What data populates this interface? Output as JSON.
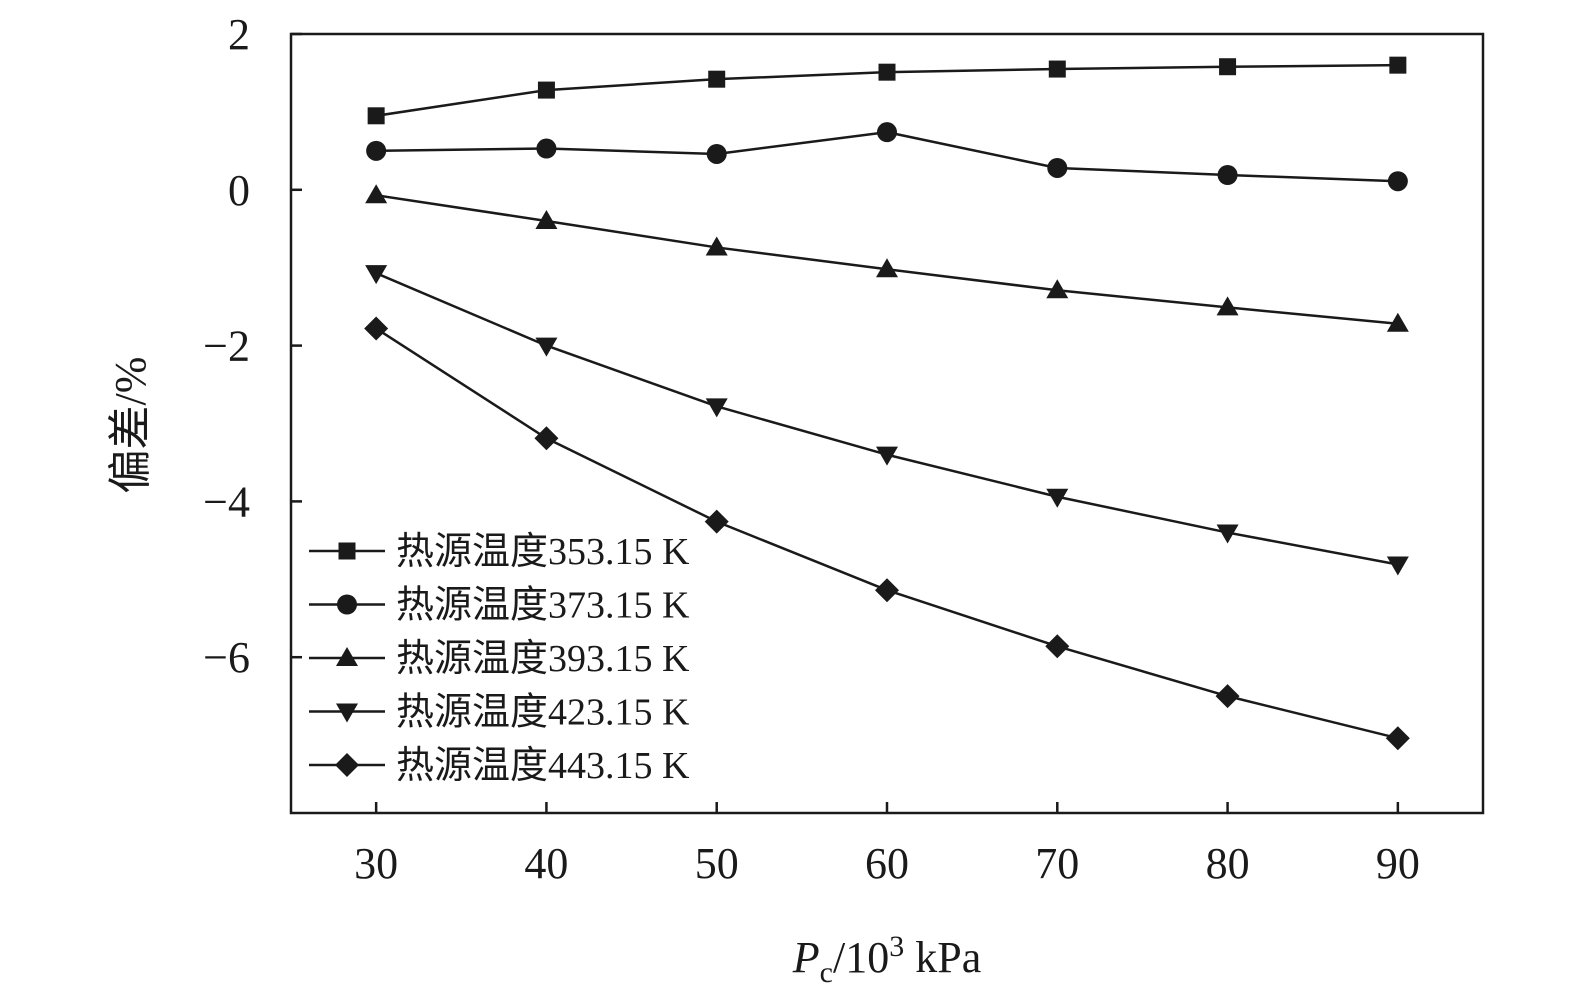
{
  "chart_data": {
    "type": "line",
    "x": [
      30,
      40,
      50,
      60,
      70,
      80,
      90
    ],
    "xlim": [
      25,
      95
    ],
    "ylim": [
      -8,
      2
    ],
    "x_ticks": [
      30,
      40,
      50,
      60,
      70,
      80,
      90
    ],
    "y_ticks": [
      2,
      0,
      -2,
      -4,
      -6
    ],
    "y_tick_labels": [
      "2",
      "0",
      "−2",
      "−4",
      "−6"
    ],
    "xlabel": {
      "main": "P",
      "sub": "c",
      "rest": "/10",
      "sup": "3",
      "tail": " kPa"
    },
    "ylabel": "偏差/%",
    "legend_position": "bottom-left",
    "grid": false,
    "series": [
      {
        "name": "热源温度353.15 K",
        "marker": "square",
        "values": [
          0.95,
          1.28,
          1.42,
          1.51,
          1.55,
          1.58,
          1.6
        ]
      },
      {
        "name": "热源温度373.15 K",
        "marker": "circle",
        "values": [
          0.5,
          0.53,
          0.46,
          0.74,
          0.28,
          0.19,
          0.11
        ]
      },
      {
        "name": "热源温度393.15 K",
        "marker": "triangle-up",
        "values": [
          -0.07,
          -0.4,
          -0.74,
          -1.02,
          -1.29,
          -1.51,
          -1.72
        ]
      },
      {
        "name": "热源温度423.15 K",
        "marker": "triangle-down",
        "values": [
          -1.07,
          -2.0,
          -2.78,
          -3.4,
          -3.94,
          -4.4,
          -4.81
        ]
      },
      {
        "name": "热源温度443.15 K",
        "marker": "diamond",
        "values": [
          -1.78,
          -3.19,
          -4.26,
          -5.14,
          -5.86,
          -6.5,
          -7.04
        ]
      }
    ],
    "colors": {
      "line": "#1a1a1a",
      "frame": "#1a1a1a"
    }
  }
}
